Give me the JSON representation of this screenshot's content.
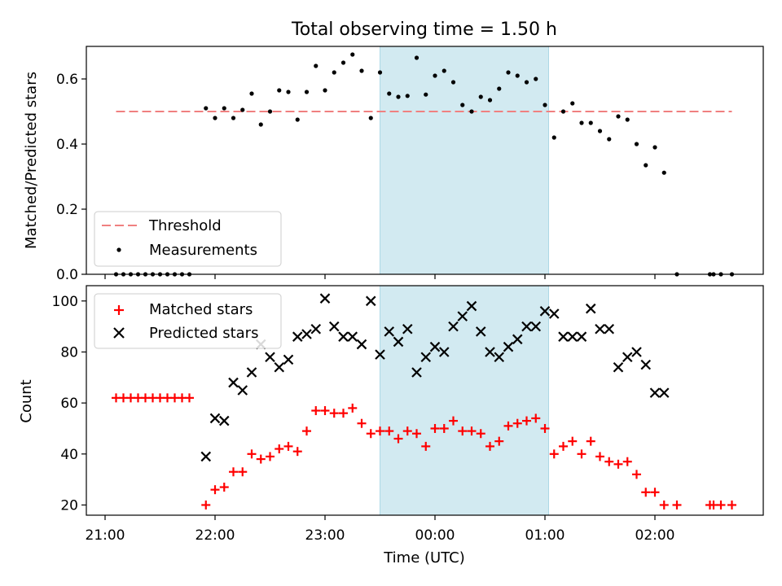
{
  "chart_data": [
    {
      "type": "scatter",
      "title": "Total observing time = 1.50 h",
      "ylabel": "Matched/Predicted stars",
      "ylim": [
        0,
        0.7
      ],
      "yticks": [
        0,
        0.2,
        0.4,
        0.6
      ],
      "ytick_labels": [
        "0.0",
        "0.2",
        "0.4",
        "0.6"
      ],
      "shaded_region": {
        "start": "23:30",
        "end": "01:02",
        "color": "#add8e6"
      },
      "threshold": {
        "name": "Threshold",
        "value": 0.5,
        "x_start": "21:06",
        "x_end": "02:42",
        "color": "#f08080",
        "style": "dashed"
      },
      "legend": {
        "position": "lower-left",
        "entries": [
          "Threshold",
          "Measurements"
        ]
      },
      "series": [
        {
          "name": "Measurements",
          "marker": "dot",
          "color": "#000000",
          "x": [
            "21:06",
            "21:10",
            "21:14",
            "21:18",
            "21:22",
            "21:26",
            "21:30",
            "21:34",
            "21:38",
            "21:42",
            "21:46",
            "21:55",
            "22:00",
            "22:05",
            "22:10",
            "22:15",
            "22:20",
            "22:25",
            "22:30",
            "22:35",
            "22:40",
            "22:45",
            "22:50",
            "22:55",
            "23:00",
            "23:05",
            "23:10",
            "23:15",
            "23:20",
            "23:25",
            "23:30",
            "23:35",
            "23:40",
            "23:45",
            "23:50",
            "23:55",
            "00:00",
            "00:05",
            "00:10",
            "00:15",
            "00:20",
            "00:25",
            "00:30",
            "00:35",
            "00:40",
            "00:45",
            "00:50",
            "00:55",
            "01:00",
            "01:05",
            "01:10",
            "01:15",
            "01:20",
            "01:25",
            "01:30",
            "01:35",
            "01:40",
            "01:45",
            "01:50",
            "01:55",
            "02:00",
            "02:05",
            "02:12",
            "02:30",
            "02:32",
            "02:36",
            "02:42"
          ],
          "y": [
            0,
            0,
            0,
            0,
            0,
            0,
            0,
            0,
            0,
            0,
            0,
            0.51,
            0.48,
            0.51,
            0.48,
            0.505,
            0.555,
            0.46,
            0.5,
            0.565,
            0.56,
            0.475,
            0.56,
            0.64,
            0.565,
            0.62,
            0.65,
            0.675,
            0.625,
            0.48,
            0.62,
            0.555,
            0.545,
            0.548,
            0.665,
            0.552,
            0.61,
            0.625,
            0.59,
            0.52,
            0.5,
            0.545,
            0.535,
            0.57,
            0.62,
            0.61,
            0.59,
            0.6,
            0.52,
            0.42,
            0.5,
            0.525,
            0.465,
            0.465,
            0.44,
            0.415,
            0.485,
            0.475,
            0.4,
            0.335,
            0.39,
            0.312,
            0,
            0,
            0,
            0,
            0
          ]
        }
      ]
    },
    {
      "type": "scatter",
      "xlabel": "Time (UTC)",
      "ylabel": "Count",
      "ylim": [
        16,
        106
      ],
      "yticks": [
        20,
        40,
        60,
        80,
        100
      ],
      "xticks": [
        "21:00",
        "22:00",
        "23:00",
        "00:00",
        "01:00",
        "02:00"
      ],
      "shaded_region": {
        "start": "23:30",
        "end": "01:02",
        "color": "#add8e6"
      },
      "legend": {
        "position": "top-left",
        "entries": [
          "Matched stars",
          "Predicted stars"
        ]
      },
      "series": [
        {
          "name": "Matched stars",
          "marker": "plus",
          "color": "#ff0000",
          "x": [
            "21:06",
            "21:10",
            "21:14",
            "21:18",
            "21:22",
            "21:26",
            "21:30",
            "21:34",
            "21:38",
            "21:42",
            "21:46",
            "21:55",
            "22:00",
            "22:05",
            "22:10",
            "22:15",
            "22:20",
            "22:25",
            "22:30",
            "22:35",
            "22:40",
            "22:45",
            "22:50",
            "22:55",
            "23:00",
            "23:05",
            "23:10",
            "23:15",
            "23:20",
            "23:25",
            "23:30",
            "23:35",
            "23:40",
            "23:45",
            "23:50",
            "23:55",
            "00:00",
            "00:05",
            "00:10",
            "00:15",
            "00:20",
            "00:25",
            "00:30",
            "00:35",
            "00:40",
            "00:45",
            "00:50",
            "00:55",
            "01:00",
            "01:05",
            "01:10",
            "01:15",
            "01:20",
            "01:25",
            "01:30",
            "01:35",
            "01:40",
            "01:45",
            "01:50",
            "01:55",
            "02:00",
            "02:05",
            "02:12",
            "02:30",
            "02:32",
            "02:36",
            "02:42"
          ],
          "y": [
            62,
            62,
            62,
            62,
            62,
            62,
            62,
            62,
            62,
            62,
            62,
            20,
            26,
            27,
            33,
            33,
            40,
            38,
            39,
            42,
            43,
            41,
            49,
            57,
            57,
            56,
            56,
            58,
            52,
            48,
            49,
            49,
            46,
            49,
            48,
            43,
            50,
            50,
            53,
            49,
            49,
            48,
            43,
            45,
            51,
            52,
            53,
            54,
            50,
            40,
            43,
            45,
            40,
            45,
            39,
            37,
            36,
            37,
            32,
            25,
            25,
            20,
            20,
            20,
            20,
            20,
            20
          ]
        },
        {
          "name": "Predicted stars",
          "marker": "x",
          "color": "#000000",
          "x": [
            "21:55",
            "22:00",
            "22:05",
            "22:10",
            "22:15",
            "22:20",
            "22:25",
            "22:30",
            "22:35",
            "22:40",
            "22:45",
            "22:50",
            "22:55",
            "23:00",
            "23:05",
            "23:10",
            "23:15",
            "23:20",
            "23:25",
            "23:30",
            "23:35",
            "23:40",
            "23:45",
            "23:50",
            "23:55",
            "00:00",
            "00:05",
            "00:10",
            "00:15",
            "00:20",
            "00:25",
            "00:30",
            "00:35",
            "00:40",
            "00:45",
            "00:50",
            "00:55",
            "01:00",
            "01:05",
            "01:10",
            "01:15",
            "01:20",
            "01:25",
            "01:30",
            "01:35",
            "01:40",
            "01:45",
            "01:50",
            "01:55",
            "02:00",
            "02:05"
          ],
          "y": [
            39,
            54,
            53,
            68,
            65,
            72,
            83,
            78,
            74,
            77,
            86,
            87,
            89,
            101,
            90,
            86,
            86,
            83,
            100,
            79,
            88,
            84,
            89,
            72,
            78,
            82,
            80,
            90,
            94,
            98,
            88,
            80,
            78,
            82,
            85,
            90,
            90,
            96,
            95,
            86,
            86,
            86,
            97,
            89,
            89,
            74,
            78,
            80,
            75,
            64,
            64
          ]
        }
      ]
    }
  ]
}
